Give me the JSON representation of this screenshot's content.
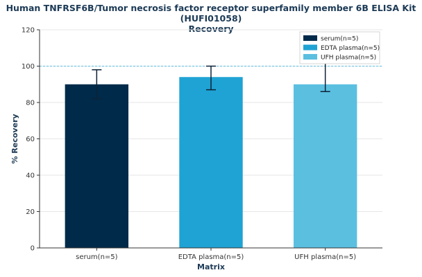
{
  "title_line1": "Human TNFRSF6B/Tumor necrosis factor receptor superfamily member 6B ELISA Kit (HUFI01058)",
  "title_line2": "Recovery",
  "chart_data": {
    "type": "bar",
    "title": "Human TNFRSF6B/Tumor necrosis factor receptor superfamily member 6B ELISA Kit (HUFI01058) Recovery",
    "xlabel": "Matrix",
    "ylabel": "% Recovery",
    "ylim": [
      0,
      120
    ],
    "yticks": [
      0,
      20,
      40,
      60,
      80,
      100,
      120
    ],
    "categories": [
      "serum(n=5)",
      "EDTA plasma(n=5)",
      "UFH plasma(n=5)"
    ],
    "values": [
      90,
      94,
      90
    ],
    "error_low": [
      82,
      87,
      86
    ],
    "error_high": [
      98,
      100,
      103
    ],
    "colors": [
      "#002a4a",
      "#1fa3d4",
      "#5bbfe0"
    ],
    "reference_line": 100,
    "legend": [
      "serum(n=5)",
      "EDTA plasma(n=5)",
      "UFH plasma(n=5)"
    ],
    "legend_position": "top-right",
    "grid": "horizontal"
  }
}
